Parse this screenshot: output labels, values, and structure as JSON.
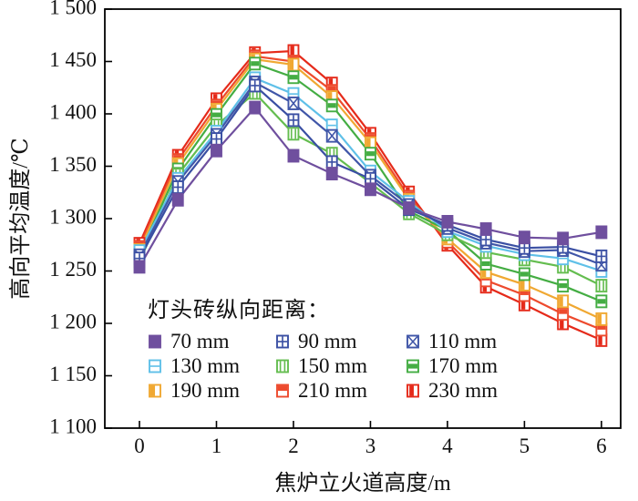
{
  "figure": {
    "kind": "line chart with square markers",
    "background": "#ffffff",
    "frame_color": "#000000"
  },
  "axes": {
    "x": {
      "label": "焦炉立火道高度/m",
      "ticks": [
        0,
        1,
        2,
        3,
        4,
        5,
        6
      ],
      "tick_labels": [
        "0",
        "1",
        "2",
        "3",
        "4",
        "5",
        "6"
      ]
    },
    "y": {
      "label": "高向平均温度/℃",
      "ticks": [
        1100,
        1150,
        1200,
        1250,
        1300,
        1350,
        1400,
        1450,
        1500
      ],
      "tick_labels": [
        "1 100",
        "1 150",
        "1 200",
        "1 250",
        "1 300",
        "1 350",
        "1 400",
        "1 450",
        "1 500"
      ]
    }
  },
  "legend": {
    "title": "灯头砖纵向距离：",
    "entries": [
      {
        "label": "70 mm",
        "color": "#6f4f9e",
        "marker": "filled"
      },
      {
        "label": "90 mm",
        "color": "#3a4fa3",
        "marker": "plus"
      },
      {
        "label": "110 mm",
        "color": "#4056a8",
        "marker": "x"
      },
      {
        "label": "130 mm",
        "color": "#5fc0e8",
        "marker": "hline"
      },
      {
        "label": "150 mm",
        "color": "#64bd4f",
        "marker": "vlines"
      },
      {
        "label": "170 mm",
        "color": "#44ad43",
        "marker": "hband"
      },
      {
        "label": "190 mm",
        "color": "#f0a832",
        "marker": "leftband"
      },
      {
        "label": "210 mm",
        "color": "#ed4a2d",
        "marker": "topband"
      },
      {
        "label": "230 mm",
        "color": "#e52a1a",
        "marker": "vband"
      }
    ]
  },
  "chart_data": {
    "type": "line",
    "xlabel": "焦炉立火道高度/m",
    "ylabel": "高向平均温度/℃",
    "xlim": [
      -0.45,
      6.25
    ],
    "ylim": [
      1100,
      1500
    ],
    "grid": false,
    "legend_position": "inside lower-left",
    "x": [
      0,
      0.5,
      1,
      1.5,
      2,
      2.5,
      3,
      3.5,
      4,
      4.5,
      5,
      5.5,
      6
    ],
    "series": [
      {
        "name": "70 mm",
        "color": "#6f4f9e",
        "marker": "filled",
        "values": [
          1254,
          1318,
          1365,
          1406,
          1360,
          1343,
          1328,
          1310,
          1297,
          1290,
          1282,
          1281,
          1287
        ]
      },
      {
        "name": "90 mm",
        "color": "#3a4fa3",
        "marker": "plus",
        "values": [
          1262,
          1330,
          1376,
          1427,
          1394,
          1354,
          1338,
          1309,
          1294,
          1280,
          1272,
          1273,
          1264
        ]
      },
      {
        "name": "110 mm",
        "color": "#4056a8",
        "marker": "x",
        "values": [
          1265,
          1335,
          1380,
          1430,
          1410,
          1379,
          1341,
          1313,
          1291,
          1277,
          1269,
          1270,
          1256
        ]
      },
      {
        "name": "130 mm",
        "color": "#5fc0e8",
        "marker": "hline",
        "values": [
          1269,
          1338,
          1383,
          1434,
          1419,
          1389,
          1345,
          1316,
          1288,
          1274,
          1266,
          1262,
          1250
        ]
      },
      {
        "name": "150 mm",
        "color": "#64bd4f",
        "marker": "vlines",
        "values": [
          1259,
          1342,
          1389,
          1420,
          1381,
          1362,
          1334,
          1305,
          1285,
          1268,
          1261,
          1254,
          1236
        ]
      },
      {
        "name": "170 mm",
        "color": "#44ad43",
        "marker": "hband",
        "values": [
          1266,
          1347,
          1399,
          1448,
          1435,
          1408,
          1362,
          1307,
          1289,
          1257,
          1247,
          1236,
          1221
        ]
      },
      {
        "name": "190 mm",
        "color": "#f0a832",
        "marker": "leftband",
        "values": [
          1270,
          1352,
          1404,
          1452,
          1447,
          1416,
          1372,
          1318,
          1281,
          1249,
          1237,
          1221,
          1204
        ]
      },
      {
        "name": "210 mm",
        "color": "#ed4a2d",
        "marker": "topband",
        "values": [
          1273,
          1356,
          1408,
          1455,
          1450,
          1422,
          1376,
          1321,
          1278,
          1241,
          1227,
          1209,
          1194
        ]
      },
      {
        "name": "230 mm",
        "color": "#e52a1a",
        "marker": "vband",
        "values": [
          1276,
          1360,
          1414,
          1458,
          1460,
          1429,
          1381,
          1325,
          1275,
          1235,
          1218,
          1200,
          1184
        ]
      }
    ]
  }
}
